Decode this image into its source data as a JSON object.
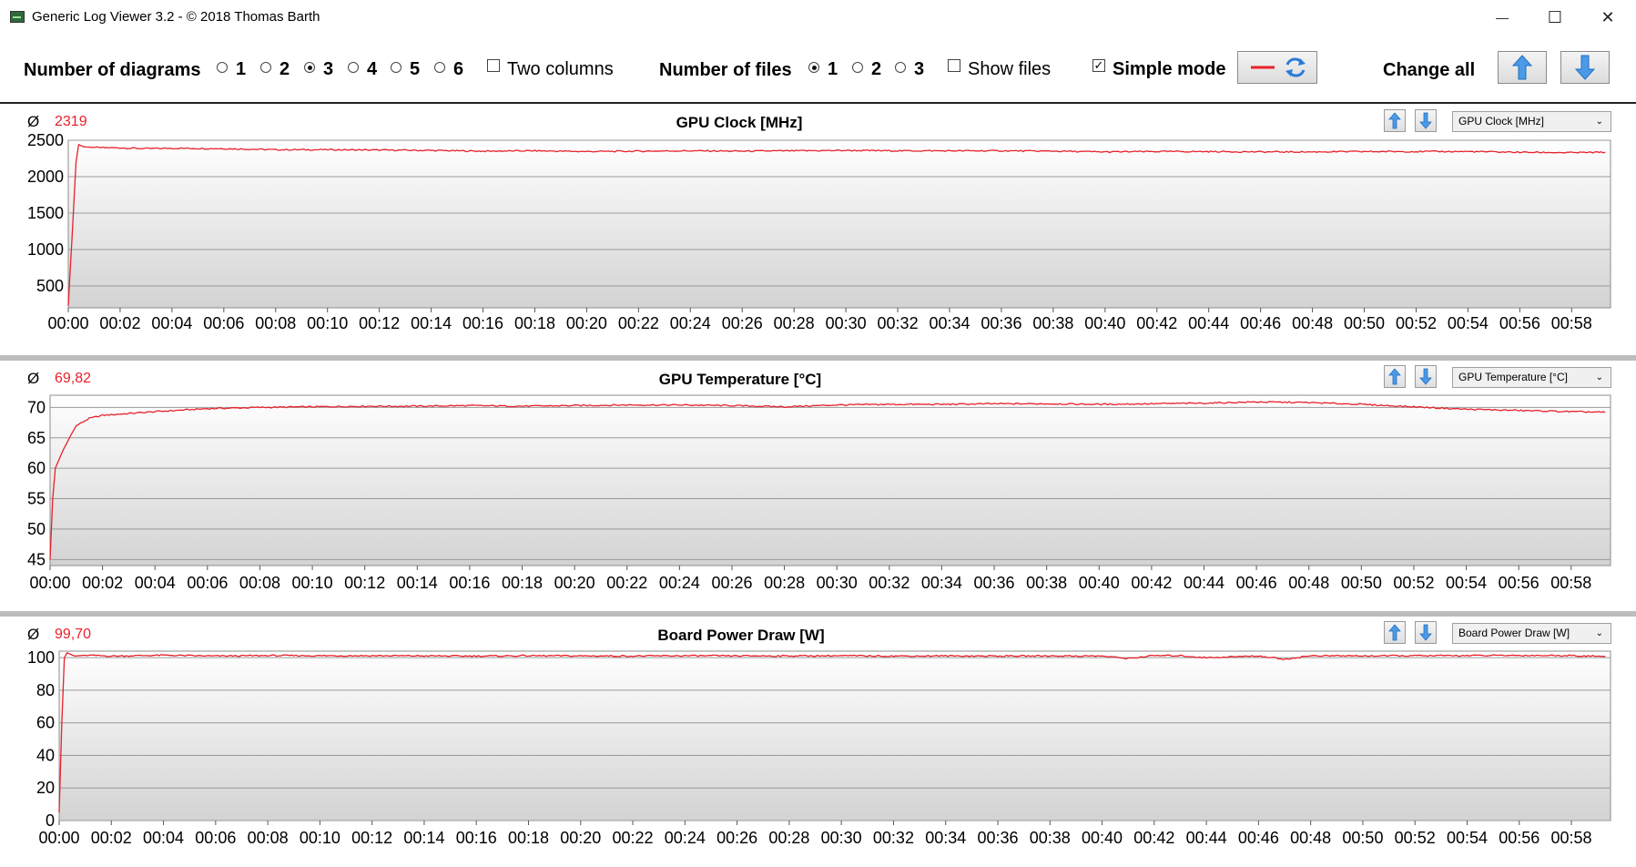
{
  "window": {
    "title": "Generic Log Viewer 3.2 - © 2018 Thomas Barth",
    "controls": {
      "minimize": "—",
      "maximize": "☐",
      "close": "✕"
    }
  },
  "toolbar": {
    "diagrams_label": "Number of diagrams",
    "diagram_options": [
      "1",
      "2",
      "3",
      "4",
      "5",
      "6"
    ],
    "diagram_selected": "3",
    "two_columns_label": "Two columns",
    "two_columns_checked": false,
    "files_label": "Number of files",
    "file_options": [
      "1",
      "2",
      "3"
    ],
    "file_selected": "1",
    "show_files_label": "Show files",
    "show_files_checked": false,
    "simple_mode_label": "Simple mode",
    "simple_mode_checked": true,
    "change_all_label": "Change all",
    "line_color": "#e8202a"
  },
  "chart_data": [
    {
      "type": "line",
      "title": "GPU Clock [MHz]",
      "average": "2319",
      "selector_value": "GPU Clock [MHz]",
      "ylim": [
        200,
        2500
      ],
      "yticks": [
        500,
        1000,
        1500,
        2000,
        2500
      ],
      "xticks": [
        "00:00",
        "00:02",
        "00:04",
        "00:06",
        "00:08",
        "00:10",
        "00:12",
        "00:14",
        "00:16",
        "00:18",
        "00:20",
        "00:22",
        "00:24",
        "00:26",
        "00:28",
        "00:30",
        "00:32",
        "00:34",
        "00:36",
        "00:38",
        "00:40",
        "00:42",
        "00:44",
        "00:46",
        "00:48",
        "00:50",
        "00:52",
        "00:54",
        "00:56",
        "00:58"
      ],
      "xlim_minutes": [
        0,
        59.5
      ],
      "series": [
        {
          "color": "#e8202a",
          "points": [
            [
              0,
              230
            ],
            [
              0.15,
              1200
            ],
            [
              0.3,
              2200
            ],
            [
              0.4,
              2440
            ],
            [
              0.6,
              2410
            ],
            [
              1,
              2400
            ],
            [
              2,
              2395
            ],
            [
              3,
              2385
            ],
            [
              4,
              2390
            ],
            [
              6,
              2385
            ],
            [
              8,
              2370
            ],
            [
              10,
              2370
            ],
            [
              12,
              2365
            ],
            [
              14,
              2360
            ],
            [
              16,
              2350
            ],
            [
              18,
              2355
            ],
            [
              20,
              2345
            ],
            [
              22,
              2350
            ],
            [
              24,
              2355
            ],
            [
              26,
              2350
            ],
            [
              28,
              2355
            ],
            [
              30,
              2360
            ],
            [
              32,
              2355
            ],
            [
              34,
              2355
            ],
            [
              36,
              2355
            ],
            [
              38,
              2350
            ],
            [
              40,
              2340
            ],
            [
              42,
              2345
            ],
            [
              44,
              2345
            ],
            [
              46,
              2340
            ],
            [
              48,
              2340
            ],
            [
              50,
              2345
            ],
            [
              52,
              2345
            ],
            [
              54,
              2345
            ],
            [
              56,
              2335
            ],
            [
              58,
              2330
            ],
            [
              59.3,
              2335
            ]
          ]
        }
      ]
    },
    {
      "type": "line",
      "title": "GPU Temperature [°C]",
      "average": "69,82",
      "selector_value": "GPU Temperature [°C]",
      "ylim": [
        44,
        72
      ],
      "yticks": [
        45,
        50,
        55,
        60,
        65,
        70
      ],
      "xticks": [
        "00:00",
        "00:02",
        "00:04",
        "00:06",
        "00:08",
        "00:10",
        "00:12",
        "00:14",
        "00:16",
        "00:18",
        "00:20",
        "00:22",
        "00:24",
        "00:26",
        "00:28",
        "00:30",
        "00:32",
        "00:34",
        "00:36",
        "00:38",
        "00:40",
        "00:42",
        "00:44",
        "00:46",
        "00:48",
        "00:50",
        "00:52",
        "00:54",
        "00:56",
        "00:58"
      ],
      "xlim_minutes": [
        0,
        59.5
      ],
      "series": [
        {
          "color": "#e8202a",
          "points": [
            [
              0,
              45
            ],
            [
              0.1,
              55
            ],
            [
              0.2,
              60
            ],
            [
              0.5,
              63
            ],
            [
              0.8,
              65.5
            ],
            [
              1,
              67
            ],
            [
              1.5,
              68.2
            ],
            [
              2,
              68.7
            ],
            [
              3,
              69
            ],
            [
              4,
              69.3
            ],
            [
              6,
              69.8
            ],
            [
              8,
              70
            ],
            [
              10,
              70.1
            ],
            [
              12,
              70.2
            ],
            [
              14,
              70.2
            ],
            [
              16,
              70.3
            ],
            [
              18,
              70.2
            ],
            [
              20,
              70.3
            ],
            [
              22,
              70.4
            ],
            [
              24,
              70.4
            ],
            [
              26,
              70.3
            ],
            [
              28,
              70.1
            ],
            [
              30,
              70.4
            ],
            [
              32,
              70.5
            ],
            [
              34,
              70.5
            ],
            [
              36,
              70.6
            ],
            [
              38,
              70.6
            ],
            [
              40,
              70.5
            ],
            [
              42,
              70.6
            ],
            [
              44,
              70.7
            ],
            [
              46,
              70.9
            ],
            [
              48,
              70.8
            ],
            [
              50,
              70.5
            ],
            [
              52,
              70.1
            ],
            [
              54,
              69.7
            ],
            [
              56,
              69.5
            ],
            [
              58,
              69.3
            ],
            [
              59.3,
              69.2
            ]
          ]
        }
      ]
    },
    {
      "type": "line",
      "title": "Board Power Draw [W]",
      "average": "99,70",
      "selector_value": "Board Power Draw [W]",
      "ylim": [
        0,
        104
      ],
      "yticks": [
        0,
        20,
        40,
        60,
        80,
        100
      ],
      "xticks": [
        "00:00",
        "00:02",
        "00:04",
        "00:06",
        "00:08",
        "00:10",
        "00:12",
        "00:14",
        "00:16",
        "00:18",
        "00:20",
        "00:22",
        "00:24",
        "00:26",
        "00:28",
        "00:30",
        "00:32",
        "00:34",
        "00:36",
        "00:38",
        "00:40",
        "00:42",
        "00:44",
        "00:46",
        "00:48",
        "00:50",
        "00:52",
        "00:54",
        "00:56",
        "00:58"
      ],
      "xlim_minutes": [
        0,
        59.5
      ],
      "series": [
        {
          "color": "#e8202a",
          "points": [
            [
              0,
              5
            ],
            [
              0.1,
              60
            ],
            [
              0.2,
              100
            ],
            [
              0.3,
              103
            ],
            [
              0.6,
              101
            ],
            [
              1,
              101.5
            ],
            [
              2,
              101
            ],
            [
              4,
              101.5
            ],
            [
              6,
              101
            ],
            [
              8,
              101.3
            ],
            [
              10,
              101.2
            ],
            [
              12,
              101.2
            ],
            [
              14,
              101.1
            ],
            [
              16,
              101
            ],
            [
              18,
              101.2
            ],
            [
              20,
              101.1
            ],
            [
              22,
              101
            ],
            [
              24,
              101.2
            ],
            [
              26,
              101.1
            ],
            [
              28,
              101.1
            ],
            [
              30,
              101.2
            ],
            [
              32,
              101
            ],
            [
              34,
              101.1
            ],
            [
              36,
              101
            ],
            [
              38,
              101.1
            ],
            [
              40,
              101
            ],
            [
              41,
              99.5
            ],
            [
              42,
              101.3
            ],
            [
              43,
              101.2
            ],
            [
              44,
              100
            ],
            [
              46,
              101.1
            ],
            [
              47,
              99
            ],
            [
              48,
              101.2
            ],
            [
              50,
              101.1
            ],
            [
              52,
              101.2
            ],
            [
              54,
              101.3
            ],
            [
              56,
              101.4
            ],
            [
              58,
              101.3
            ],
            [
              59.3,
              100.8
            ]
          ]
        }
      ]
    }
  ]
}
